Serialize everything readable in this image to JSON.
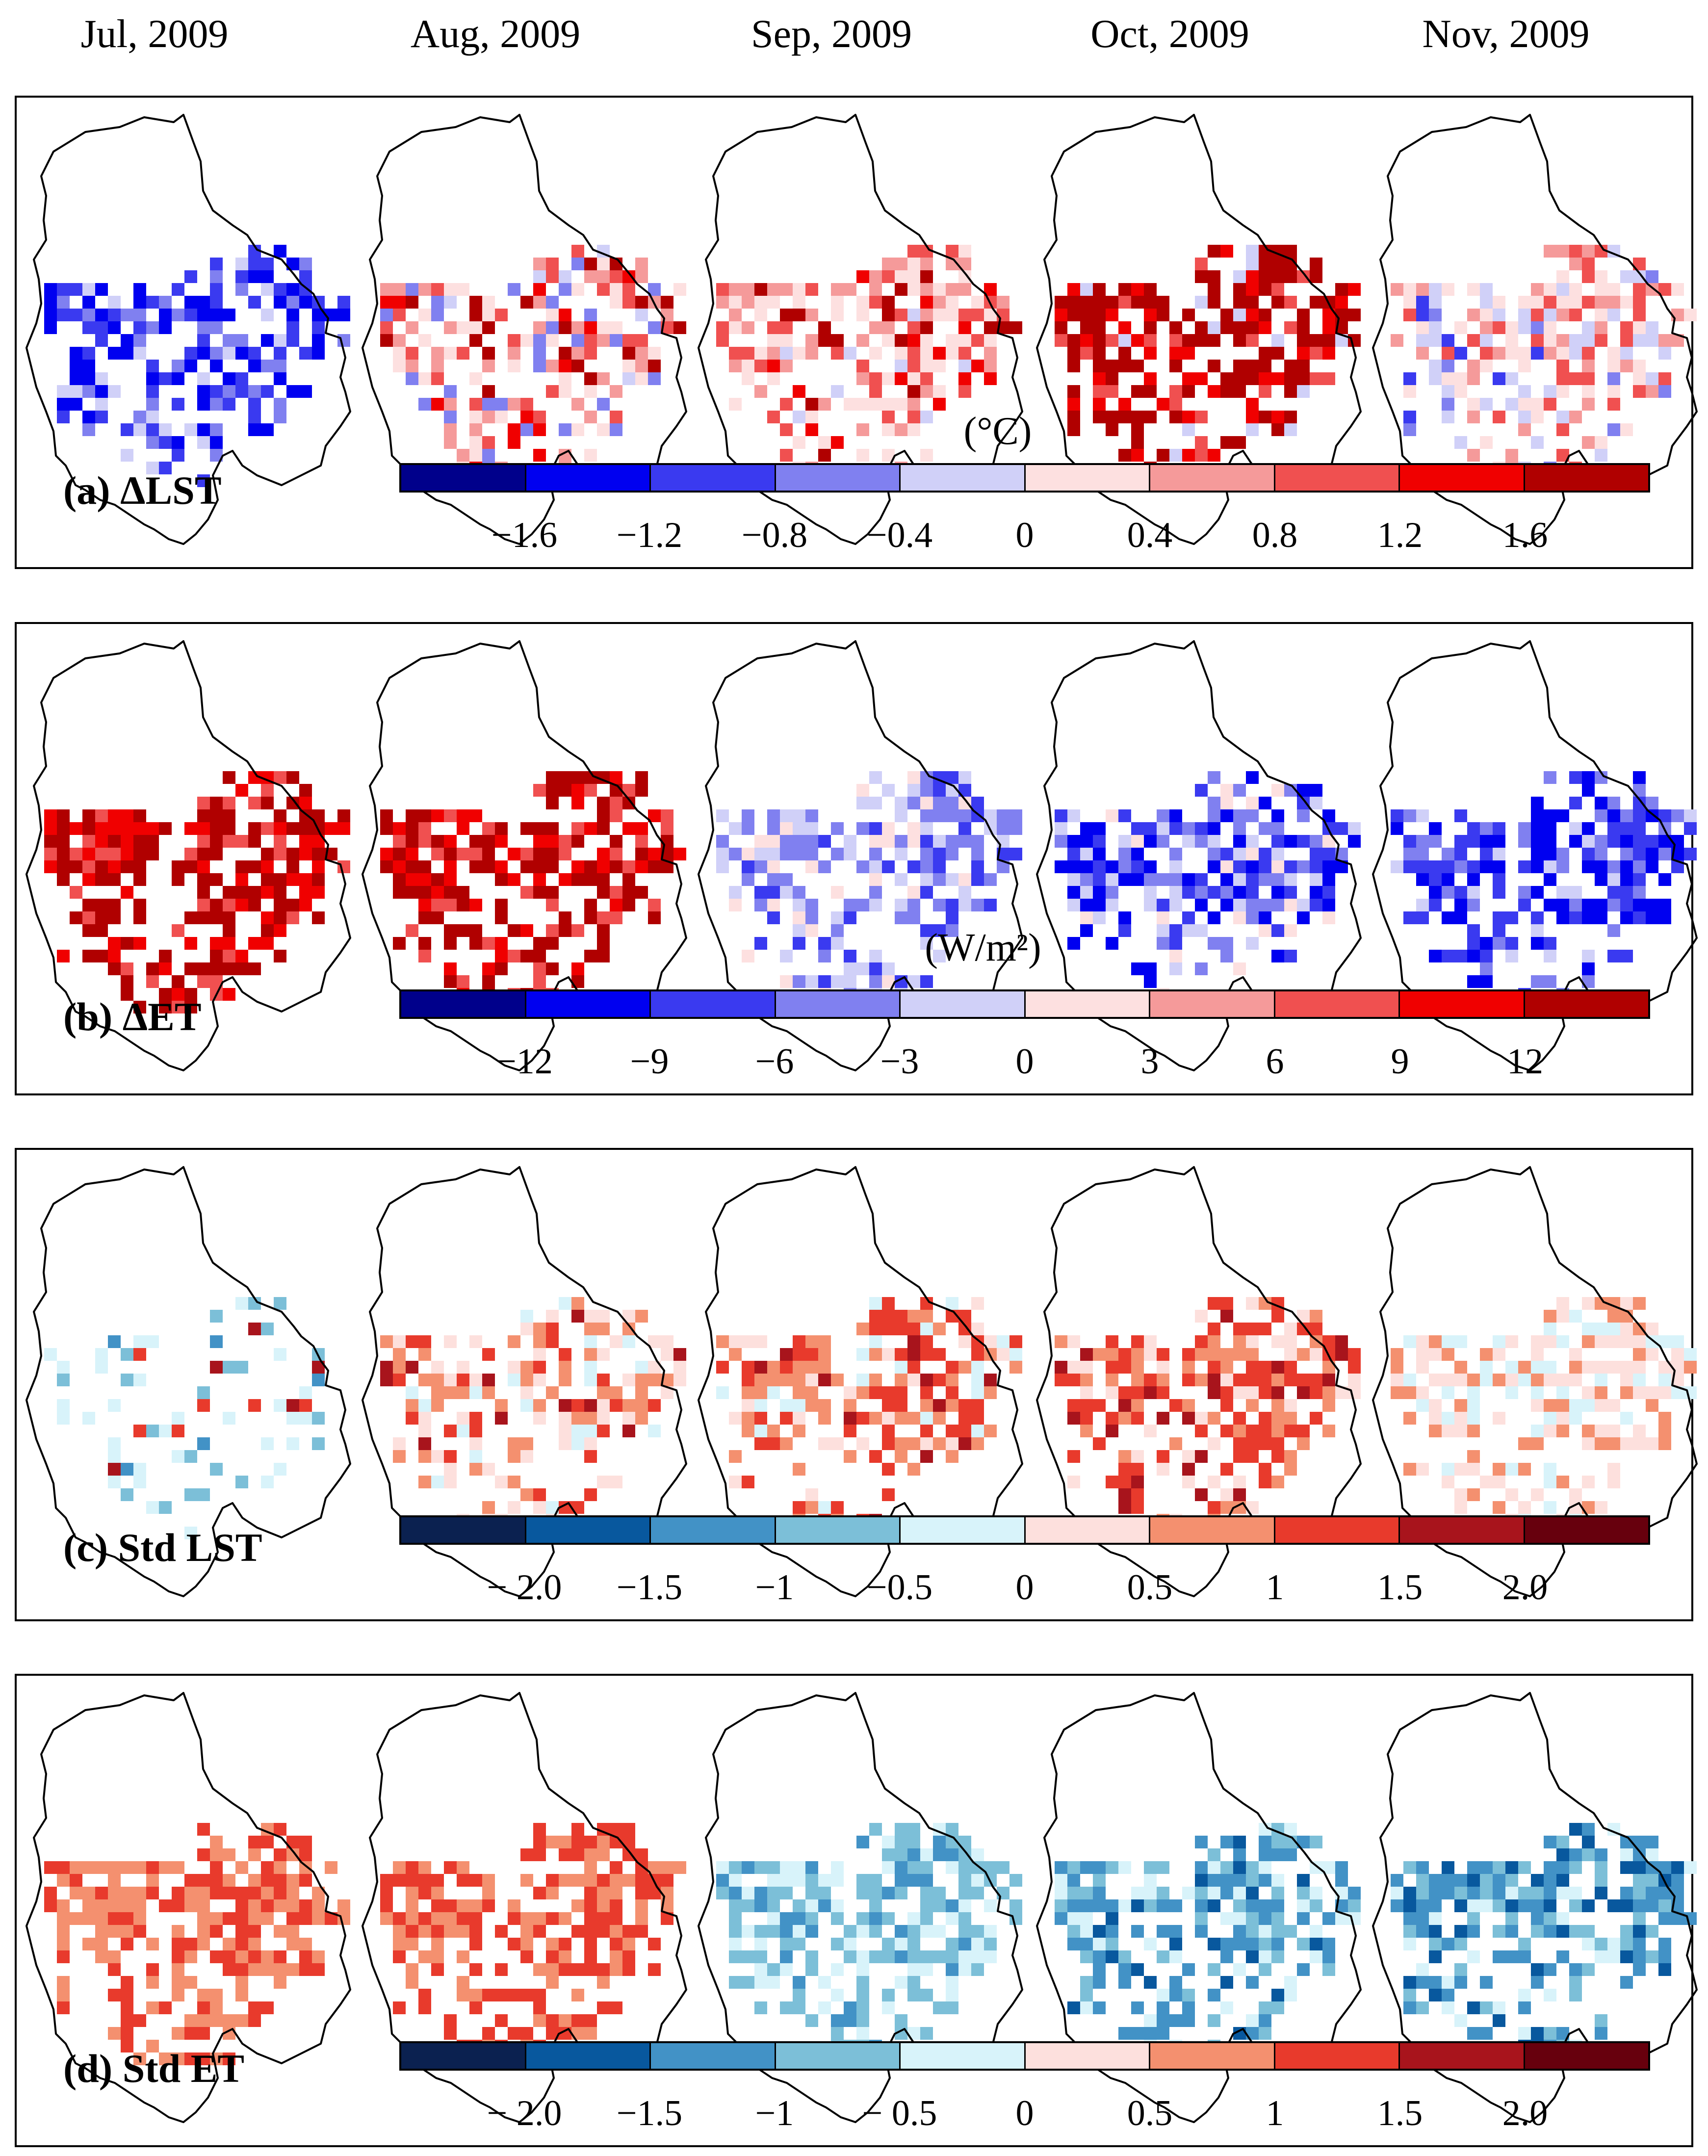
{
  "months": [
    "Jul, 2009",
    "Aug, 2009",
    "Sep, 2009",
    "Oct, 2009",
    "Nov, 2009"
  ],
  "panels": [
    {
      "id": "dlst",
      "label": "(a) ΔLST",
      "unit": "(°C)",
      "colors": [
        "#00008b",
        "#0000f0",
        "#3a3af0",
        "#8080f0",
        "#d0d0f8",
        "#fde0e0",
        "#f59a9a",
        "#f05050",
        "#f00000",
        "#b00000"
      ],
      "ticks": [
        "−1.6",
        "−1.2",
        "−0.8",
        "−0.4",
        "0",
        "0.4",
        "0.8",
        "1.2",
        "1.6"
      ],
      "maps": [
        {
          "dominant": [
            1,
            2,
            3,
            4
          ],
          "weights": [
            0.35,
            0.3,
            0.2,
            0.15
          ],
          "density": 0.55
        },
        {
          "dominant": [
            5,
            6,
            7,
            8,
            9,
            3,
            4
          ],
          "weights": [
            0.25,
            0.25,
            0.15,
            0.1,
            0.1,
            0.1,
            0.05
          ],
          "density": 0.55
        },
        {
          "dominant": [
            5,
            6,
            7,
            8,
            9,
            4
          ],
          "weights": [
            0.3,
            0.25,
            0.2,
            0.1,
            0.1,
            0.05
          ],
          "density": 0.55
        },
        {
          "dominant": [
            9,
            8,
            7,
            4
          ],
          "weights": [
            0.65,
            0.2,
            0.1,
            0.05
          ],
          "density": 0.6
        },
        {
          "dominant": [
            5,
            6,
            4,
            7,
            3,
            2
          ],
          "weights": [
            0.3,
            0.2,
            0.2,
            0.15,
            0.1,
            0.05
          ],
          "density": 0.55
        }
      ]
    },
    {
      "id": "det",
      "label": "(b) ΔET",
      "unit": "(W/m²)",
      "colors": [
        "#00008b",
        "#0000f0",
        "#3a3af0",
        "#8080f0",
        "#d0d0f8",
        "#fde0e0",
        "#f59a9a",
        "#f05050",
        "#f00000",
        "#b00000"
      ],
      "ticks": [
        "−12",
        "−9",
        "−6",
        "−3",
        "0",
        "3",
        "6",
        "9",
        "12"
      ],
      "maps": [
        {
          "dominant": [
            9,
            8,
            7
          ],
          "weights": [
            0.55,
            0.3,
            0.15
          ],
          "density": 0.6
        },
        {
          "dominant": [
            9,
            8,
            7
          ],
          "weights": [
            0.5,
            0.3,
            0.2
          ],
          "density": 0.6
        },
        {
          "dominant": [
            3,
            4,
            2,
            5
          ],
          "weights": [
            0.35,
            0.3,
            0.2,
            0.15
          ],
          "density": 0.6
        },
        {
          "dominant": [
            1,
            2,
            3,
            4,
            5
          ],
          "weights": [
            0.3,
            0.25,
            0.2,
            0.15,
            0.1
          ],
          "density": 0.6
        },
        {
          "dominant": [
            1,
            2,
            3,
            4
          ],
          "weights": [
            0.4,
            0.3,
            0.2,
            0.1
          ],
          "density": 0.6
        }
      ]
    },
    {
      "id": "stdlst",
      "label": "(c) Std LST",
      "unit": "",
      "colors": [
        "#0b2150",
        "#08589e",
        "#4292c6",
        "#7cbfd8",
        "#d8f3fa",
        "#fde0dd",
        "#f4906f",
        "#e83a2c",
        "#a8141c",
        "#67000d"
      ],
      "ticks": [
        "− 2.0",
        "−1.5",
        "−1",
        "−0.5",
        "0",
        "0.5",
        "1",
        "1.5",
        "2.0"
      ],
      "maps": [
        {
          "dominant": [
            4,
            3,
            2,
            7,
            8
          ],
          "weights": [
            0.45,
            0.25,
            0.1,
            0.1,
            0.1
          ],
          "density": 0.25
        },
        {
          "dominant": [
            5,
            6,
            7,
            4,
            8
          ],
          "weights": [
            0.35,
            0.3,
            0.15,
            0.1,
            0.1
          ],
          "density": 0.5
        },
        {
          "dominant": [
            6,
            7,
            5,
            4,
            8
          ],
          "weights": [
            0.35,
            0.3,
            0.15,
            0.1,
            0.1
          ],
          "density": 0.55
        },
        {
          "dominant": [
            7,
            6,
            5,
            8
          ],
          "weights": [
            0.4,
            0.25,
            0.2,
            0.15
          ],
          "density": 0.6
        },
        {
          "dominant": [
            5,
            4,
            6
          ],
          "weights": [
            0.5,
            0.3,
            0.2
          ],
          "density": 0.55
        }
      ]
    },
    {
      "id": "stdet",
      "label": "(d) Std ET",
      "unit": "",
      "colors": [
        "#0b2150",
        "#08589e",
        "#4292c6",
        "#7cbfd8",
        "#d8f3fa",
        "#fde0dd",
        "#f4906f",
        "#e83a2c",
        "#a8141c",
        "#67000d"
      ],
      "ticks": [
        "− 2.0",
        "−1.5",
        "−1",
        "− 0.5",
        "0",
        "0.5",
        "1",
        "1.5",
        "2.0"
      ],
      "maps": [
        {
          "dominant": [
            6,
            7
          ],
          "weights": [
            0.55,
            0.45
          ],
          "density": 0.6
        },
        {
          "dominant": [
            7,
            6
          ],
          "weights": [
            0.55,
            0.45
          ],
          "density": 0.6
        },
        {
          "dominant": [
            3,
            4,
            2
          ],
          "weights": [
            0.45,
            0.35,
            0.2
          ],
          "density": 0.6
        },
        {
          "dominant": [
            2,
            3,
            4,
            1
          ],
          "weights": [
            0.35,
            0.3,
            0.25,
            0.1
          ],
          "density": 0.6
        },
        {
          "dominant": [
            2,
            1,
            3,
            4
          ],
          "weights": [
            0.4,
            0.2,
            0.25,
            0.15
          ],
          "density": 0.6
        }
      ]
    }
  ]
}
